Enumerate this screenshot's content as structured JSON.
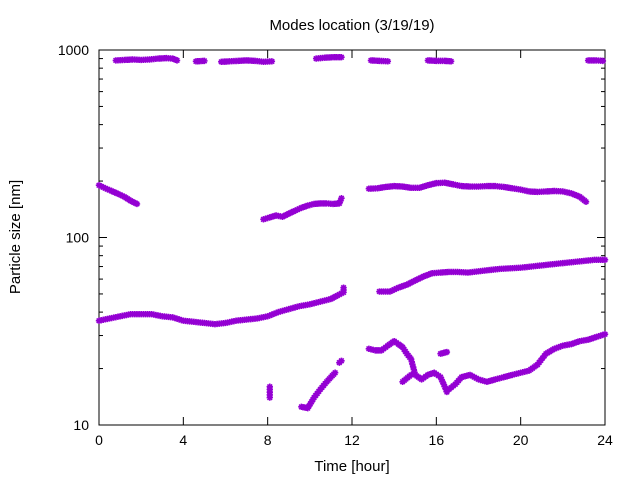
{
  "chart_data": {
    "type": "scatter",
    "title": "Modes location (3/19/19)",
    "xlabel": "Time [hour]",
    "ylabel": "Particle size [nm]",
    "xlim": [
      0,
      24
    ],
    "ylim": [
      10,
      1000
    ],
    "yscale": "log",
    "grid": false,
    "legend": "none",
    "x_ticks": [
      0,
      4,
      8,
      12,
      16,
      20,
      24
    ],
    "x_tick_labels": [
      "0",
      "4",
      "8",
      "12",
      "16",
      "20",
      "24"
    ],
    "y_ticks": [
      10,
      100,
      1000
    ],
    "y_tick_labels": [
      "10",
      "100",
      "1000"
    ],
    "marker": "star",
    "color": "#9400d3",
    "series": [
      {
        "segments": [
          [
            [
              0.8,
              880
            ],
            [
              1.2,
              885
            ],
            [
              1.6,
              890
            ],
            [
              2.0,
              885
            ],
            [
              2.4,
              890
            ],
            [
              2.8,
              900
            ],
            [
              3.2,
              905
            ],
            [
              3.5,
              900
            ],
            [
              3.7,
              880
            ]
          ],
          [
            [
              4.6,
              870
            ],
            [
              5.0,
              875
            ]
          ],
          [
            [
              5.8,
              865
            ],
            [
              6.2,
              870
            ],
            [
              6.6,
              875
            ],
            [
              7.0,
              880
            ],
            [
              7.4,
              875
            ],
            [
              7.8,
              865
            ],
            [
              8.2,
              870
            ]
          ],
          [
            [
              10.3,
              900
            ],
            [
              10.7,
              910
            ],
            [
              11.1,
              915
            ],
            [
              11.5,
              915
            ]
          ],
          [
            [
              12.9,
              880
            ],
            [
              13.3,
              875
            ],
            [
              13.7,
              870
            ]
          ],
          [
            [
              15.6,
              880
            ],
            [
              16.0,
              875
            ],
            [
              16.4,
              875
            ],
            [
              16.7,
              870
            ]
          ],
          [
            [
              23.2,
              880
            ],
            [
              23.6,
              880
            ],
            [
              23.9,
              875
            ]
          ]
        ]
      },
      {
        "segments": [
          [
            [
              0,
              190
            ],
            [
              0.3,
              183
            ],
            [
              0.6,
              177
            ],
            [
              0.9,
              171
            ],
            [
              1.2,
              165
            ],
            [
              1.5,
              157
            ],
            [
              1.8,
              151
            ]
          ],
          [
            [
              7.8,
              125
            ],
            [
              8.1,
              128
            ],
            [
              8.4,
              131
            ],
            [
              8.7,
              129
            ],
            [
              9.0,
              134
            ],
            [
              9.3,
              139
            ],
            [
              9.6,
              144
            ],
            [
              9.9,
              148
            ],
            [
              10.2,
              151
            ],
            [
              10.5,
              152
            ],
            [
              10.8,
              152
            ],
            [
              11.1,
              151
            ],
            [
              11.4,
              152
            ],
            [
              11.5,
              162
            ]
          ],
          [
            [
              12.8,
              182
            ],
            [
              13.2,
              183
            ],
            [
              13.6,
              186
            ],
            [
              14.0,
              188
            ],
            [
              14.4,
              187
            ],
            [
              14.8,
              184
            ],
            [
              15.2,
              184
            ],
            [
              15.6,
              190
            ],
            [
              16.0,
              195
            ],
            [
              16.4,
              196
            ],
            [
              16.8,
              192
            ],
            [
              17.2,
              188
            ],
            [
              17.6,
              187
            ],
            [
              18.0,
              187
            ],
            [
              18.4,
              188
            ],
            [
              18.8,
              188
            ],
            [
              19.2,
              186
            ],
            [
              19.6,
              183
            ],
            [
              20.0,
              180
            ],
            [
              20.4,
              176
            ],
            [
              20.8,
              175
            ],
            [
              21.2,
              176
            ],
            [
              21.6,
              177
            ],
            [
              22.0,
              176
            ],
            [
              22.4,
              172
            ],
            [
              22.8,
              165
            ],
            [
              23.1,
              155
            ]
          ]
        ]
      },
      {
        "segments": [
          [
            [
              0,
              36
            ],
            [
              0.5,
              37
            ],
            [
              1.0,
              38
            ],
            [
              1.5,
              39
            ],
            [
              2.0,
              39
            ],
            [
              2.5,
              39
            ],
            [
              3.0,
              38
            ],
            [
              3.5,
              37.5
            ],
            [
              4.0,
              36
            ],
            [
              4.5,
              35.5
            ],
            [
              5.0,
              35
            ],
            [
              5.5,
              34.5
            ],
            [
              6.0,
              35
            ],
            [
              6.5,
              36
            ],
            [
              7.0,
              36.5
            ],
            [
              7.5,
              37
            ],
            [
              8.0,
              38
            ],
            [
              8.5,
              40
            ],
            [
              9.0,
              41.5
            ],
            [
              9.5,
              43
            ],
            [
              10.0,
              44
            ],
            [
              10.5,
              45.5
            ],
            [
              11.0,
              47
            ],
            [
              11.3,
              49
            ],
            [
              11.6,
              51
            ],
            [
              11.6,
              54
            ]
          ],
          [
            [
              13.3,
              51.5
            ],
            [
              13.8,
              51.5
            ],
            [
              14.2,
              54
            ],
            [
              14.6,
              56
            ],
            [
              15.0,
              59
            ],
            [
              15.4,
              62
            ],
            [
              15.8,
              64.5
            ],
            [
              16.2,
              65
            ],
            [
              16.6,
              65.5
            ],
            [
              17.0,
              65.5
            ],
            [
              17.5,
              65
            ],
            [
              18.0,
              66
            ],
            [
              18.5,
              67
            ],
            [
              19.0,
              68
            ],
            [
              19.5,
              68.5
            ],
            [
              20.0,
              69
            ],
            [
              20.5,
              70
            ],
            [
              21.0,
              71
            ],
            [
              21.5,
              72
            ],
            [
              22.0,
              73
            ],
            [
              22.5,
              74
            ],
            [
              23.0,
              75
            ],
            [
              23.5,
              76
            ],
            [
              24.0,
              76
            ]
          ]
        ]
      },
      {
        "segments": [
          [
            [
              8.1,
              16
            ],
            [
              8.1,
              14
            ]
          ],
          [
            [
              9.6,
              12.5
            ],
            [
              9.9,
              12.3
            ],
            [
              10.2,
              14
            ],
            [
              10.5,
              15.5
            ],
            [
              10.8,
              17
            ],
            [
              11.0,
              18
            ],
            [
              11.2,
              19
            ]
          ],
          [
            [
              11.4,
              21.5
            ],
            [
              11.5,
              22
            ]
          ],
          [
            [
              12.8,
              25.5
            ],
            [
              13.1,
              25
            ],
            [
              13.4,
              25
            ],
            [
              13.7,
              26.5
            ],
            [
              14.0,
              28
            ],
            [
              14.2,
              27
            ],
            [
              14.4,
              26
            ],
            [
              14.6,
              24
            ],
            [
              14.8,
              22.5
            ],
            [
              15.0,
              18.5
            ],
            [
              15.3,
              17.5
            ],
            [
              15.6,
              18.5
            ],
            [
              15.9,
              19
            ],
            [
              16.2,
              18
            ],
            [
              16.4,
              16
            ],
            [
              16.5,
              15
            ]
          ],
          [
            [
              16.2,
              24
            ],
            [
              16.5,
              24.5
            ]
          ],
          [
            [
              14.4,
              17
            ],
            [
              14.8,
              18.5
            ]
          ],
          [
            [
              16.6,
              15.5
            ],
            [
              16.9,
              16.5
            ],
            [
              17.2,
              18
            ],
            [
              17.6,
              18.5
            ],
            [
              18.0,
              17.5
            ],
            [
              18.4,
              17
            ],
            [
              18.8,
              17.5
            ],
            [
              19.2,
              18
            ],
            [
              19.6,
              18.5
            ],
            [
              20.0,
              19
            ],
            [
              20.4,
              19.5
            ],
            [
              20.8,
              21
            ],
            [
              21.2,
              24
            ],
            [
              21.6,
              25.5
            ],
            [
              22.0,
              26.5
            ],
            [
              22.4,
              27
            ],
            [
              22.8,
              28
            ],
            [
              23.2,
              28.5
            ],
            [
              23.6,
              29.5
            ],
            [
              24.0,
              30.5
            ]
          ]
        ]
      }
    ]
  }
}
